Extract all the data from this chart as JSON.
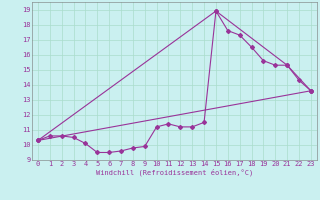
{
  "xlabel": "Windchill (Refroidissement éolien,°C)",
  "bg_color": "#caf0f0",
  "line_color": "#993399",
  "grid_color": "#aaddcc",
  "xlim": [
    -0.5,
    23.5
  ],
  "ylim": [
    9,
    19.5
  ],
  "xticks": [
    0,
    1,
    2,
    3,
    4,
    5,
    6,
    7,
    8,
    9,
    10,
    11,
    12,
    13,
    14,
    15,
    16,
    17,
    18,
    19,
    20,
    21,
    22,
    23
  ],
  "yticks": [
    9,
    10,
    11,
    12,
    13,
    14,
    15,
    16,
    17,
    18,
    19
  ],
  "line1_x": [
    0,
    1,
    2,
    3,
    4,
    5,
    6,
    7,
    8,
    9,
    10,
    11,
    12,
    13,
    14,
    15,
    16,
    17,
    18,
    19,
    20,
    21,
    22,
    23
  ],
  "line1_y": [
    10.3,
    10.6,
    10.6,
    10.5,
    10.1,
    9.5,
    9.5,
    9.6,
    9.8,
    9.9,
    11.2,
    11.4,
    11.2,
    11.2,
    11.5,
    18.9,
    17.6,
    17.3,
    16.5,
    15.6,
    15.3,
    15.3,
    14.3,
    13.6
  ],
  "line2_x": [
    0,
    15,
    21,
    23
  ],
  "line2_y": [
    10.3,
    18.9,
    15.3,
    13.6
  ],
  "line3_x": [
    0,
    23
  ],
  "line3_y": [
    10.3,
    13.6
  ]
}
